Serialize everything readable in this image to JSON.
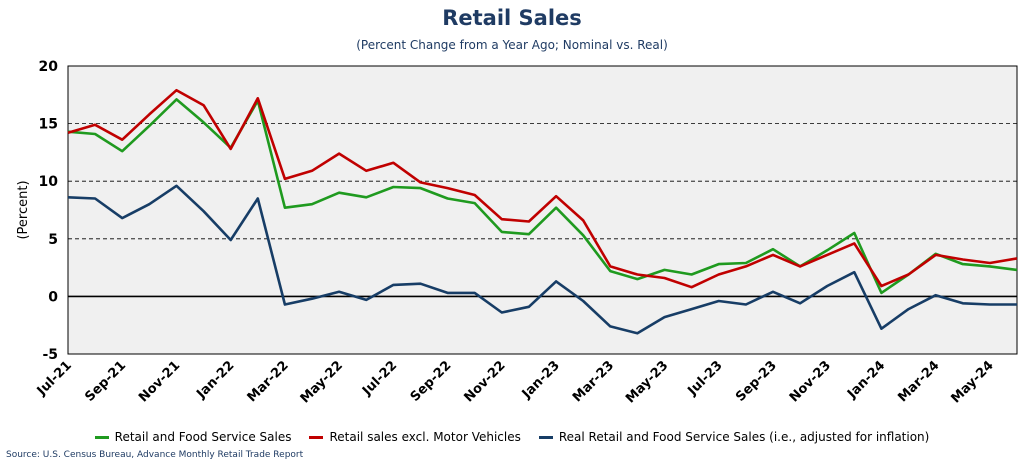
{
  "chart_data": {
    "type": "line",
    "title": "Retail Sales",
    "subtitle": "(Percent Change from a Year Ago; Nominal vs. Real)",
    "ylabel": "(Percent)",
    "xlabel": "",
    "ylim": [
      -5,
      20
    ],
    "yticks": [
      -5,
      0,
      5,
      10,
      15,
      20
    ],
    "grid": "dashed horizontal",
    "legend_position": "bottom",
    "x": [
      "Jul-21",
      "Aug-21",
      "Sep-21",
      "Oct-21",
      "Nov-21",
      "Dec-21",
      "Jan-22",
      "Feb-22",
      "Mar-22",
      "Apr-22",
      "May-22",
      "Jun-22",
      "Jul-22",
      "Aug-22",
      "Sep-22",
      "Oct-22",
      "Nov-22",
      "Dec-22",
      "Jan-23",
      "Feb-23",
      "Mar-23",
      "Apr-23",
      "May-23",
      "Jun-23",
      "Jul-23",
      "Aug-23",
      "Sep-23",
      "Oct-23",
      "Nov-23",
      "Dec-23",
      "Jan-24",
      "Feb-24",
      "Mar-24",
      "Apr-24",
      "May-24",
      "Jun-24"
    ],
    "x_tick_labels": [
      "Jul-21",
      "Sep-21",
      "Nov-21",
      "Jan-22",
      "Mar-22",
      "May-22",
      "Jul-22",
      "Sep-22",
      "Nov-22",
      "Jan-23",
      "Mar-23",
      "May-23",
      "Jul-23",
      "Sep-23",
      "Nov-23",
      "Jan-24",
      "Mar-24",
      "May-24"
    ],
    "series": [
      {
        "name": "Retail and Food Service Sales",
        "color": "#1f9a1f",
        "values": [
          14.3,
          14.1,
          12.6,
          14.8,
          17.1,
          15.1,
          12.9,
          17.0,
          7.7,
          8.0,
          9.0,
          8.6,
          9.5,
          9.4,
          8.5,
          8.1,
          5.6,
          5.4,
          7.7,
          5.3,
          2.2,
          1.5,
          2.3,
          1.9,
          2.8,
          2.9,
          4.1,
          2.6,
          4.0,
          5.5,
          0.3,
          1.9,
          3.7,
          2.8,
          2.6,
          2.3
        ]
      },
      {
        "name": "Retail sales excl. Motor Vehicles",
        "color": "#c00000",
        "values": [
          14.2,
          14.9,
          13.6,
          15.8,
          17.9,
          16.6,
          12.8,
          17.2,
          10.2,
          10.9,
          12.4,
          10.9,
          11.6,
          9.9,
          9.4,
          8.8,
          6.7,
          6.5,
          8.7,
          6.6,
          2.6,
          1.9,
          1.6,
          0.8,
          1.9,
          2.6,
          3.6,
          2.6,
          3.6,
          4.6,
          0.9,
          1.9,
          3.6,
          3.2,
          2.9,
          3.3
        ]
      },
      {
        "name": "Real Retail and Food Service Sales (i.e., adjusted for inflation)",
        "color": "#173d66",
        "values": [
          8.6,
          8.5,
          6.8,
          8.0,
          9.6,
          7.4,
          4.9,
          8.5,
          -0.7,
          -0.2,
          0.4,
          -0.3,
          1.0,
          1.1,
          0.3,
          0.3,
          -1.4,
          -0.9,
          1.3,
          -0.4,
          -2.6,
          -3.2,
          -1.8,
          -1.1,
          -0.4,
          -0.7,
          0.4,
          -0.6,
          0.9,
          2.1,
          -2.8,
          -1.1,
          0.1,
          -0.6,
          -0.7,
          -0.7
        ]
      }
    ]
  },
  "source": "Source: U.S. Census Bureau, Advance Monthly Retail Trade Report"
}
